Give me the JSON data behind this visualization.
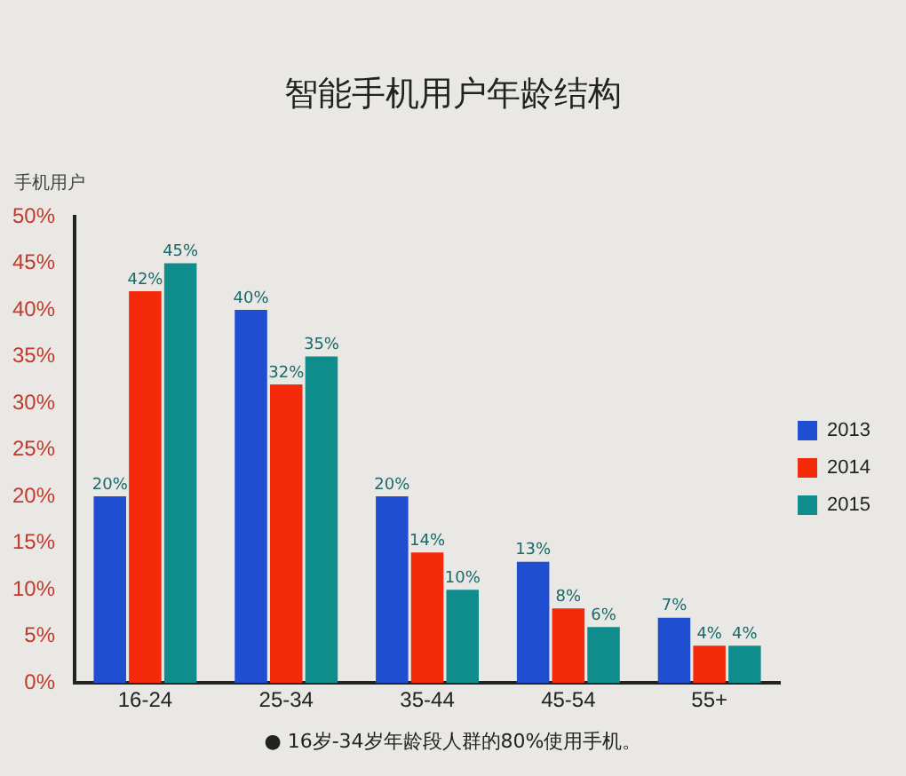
{
  "chart_data": {
    "type": "bar",
    "title": "智能手机用户年龄结构",
    "ylabel": "手机用户",
    "categories": [
      "16-24",
      "25-34",
      "35-44",
      "45-54",
      "55+"
    ],
    "series": [
      {
        "name": "2013",
        "color": "#1f4fd0",
        "values": [
          20,
          40,
          20,
          13,
          7
        ],
        "value_labels": [
          "20%",
          "40%",
          "20%",
          "13%",
          "7%"
        ]
      },
      {
        "name": "2014",
        "color": "#f52a0a",
        "values": [
          42,
          32,
          14,
          8,
          4
        ],
        "value_labels": [
          "42%",
          "32%",
          "14%",
          "8%",
          "4%"
        ]
      },
      {
        "name": "2015",
        "color": "#0f8c8c",
        "values": [
          45,
          35,
          10,
          6,
          4
        ],
        "value_labels": [
          "45%",
          "35%",
          "10%",
          "6%",
          "4%"
        ]
      }
    ],
    "ylim": [
      0,
      50
    ],
    "yticks": [
      {
        "value": 0,
        "label": "0%"
      },
      {
        "value": 5,
        "label": "5%"
      },
      {
        "value": 10,
        "label": "10%"
      },
      {
        "value": 15,
        "label": "15%"
      },
      {
        "value": 20,
        "label": "20%"
      },
      {
        "value": 25,
        "label": "25%"
      },
      {
        "value": 30,
        "label": "30%"
      },
      {
        "value": 35,
        "label": "35%"
      },
      {
        "value": 40,
        "label": "40%"
      },
      {
        "value": 45,
        "label": "45%"
      },
      {
        "value": 50,
        "label": "50%"
      }
    ],
    "grid": false,
    "legend": "right",
    "annotations": [
      "● 16岁-34岁年龄段人群的80%使用手机。"
    ]
  }
}
